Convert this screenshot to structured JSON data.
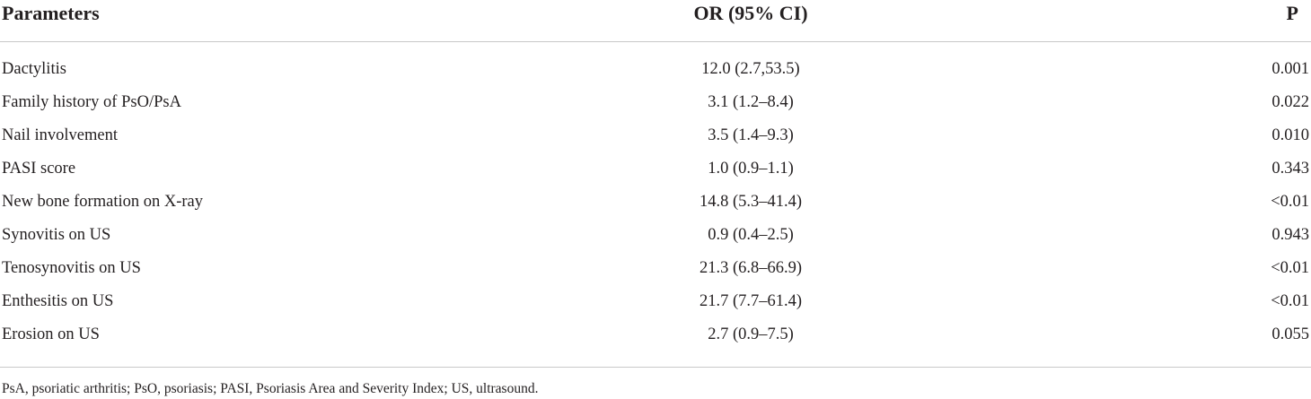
{
  "table": {
    "headers": {
      "parameters": "Parameters",
      "or_ci": "OR (95% CI)",
      "p": "P"
    },
    "rows": [
      {
        "parameter": "Dactylitis",
        "or_ci": "12.0 (2.7,53.5)",
        "p": "0.001"
      },
      {
        "parameter": "Family history of PsO/PsA",
        "or_ci": "3.1 (1.2–8.4)",
        "p": "0.022"
      },
      {
        "parameter": "Nail involvement",
        "or_ci": "3.5 (1.4–9.3)",
        "p": "0.010"
      },
      {
        "parameter": "PASI score",
        "or_ci": "1.0 (0.9–1.1)",
        "p": "0.343"
      },
      {
        "parameter": "New bone formation on X-ray",
        "or_ci": "14.8 (5.3–41.4)",
        "p": "<0.01"
      },
      {
        "parameter": "Synovitis on US",
        "or_ci": "0.9 (0.4–2.5)",
        "p": "0.943"
      },
      {
        "parameter": "Tenosynovitis on US",
        "or_ci": "21.3 (6.8–66.9)",
        "p": "<0.01"
      },
      {
        "parameter": "Enthesitis on US",
        "or_ci": "21.7 (7.7–61.4)",
        "p": "<0.01"
      },
      {
        "parameter": "Erosion on US",
        "or_ci": "2.7 (0.9–7.5)",
        "p": "0.055"
      }
    ],
    "footnote": "PsA, psoriatic arthritis; PsO, psoriasis; PASI, Psoriasis Area and Severity Index; US, ultrasound."
  }
}
